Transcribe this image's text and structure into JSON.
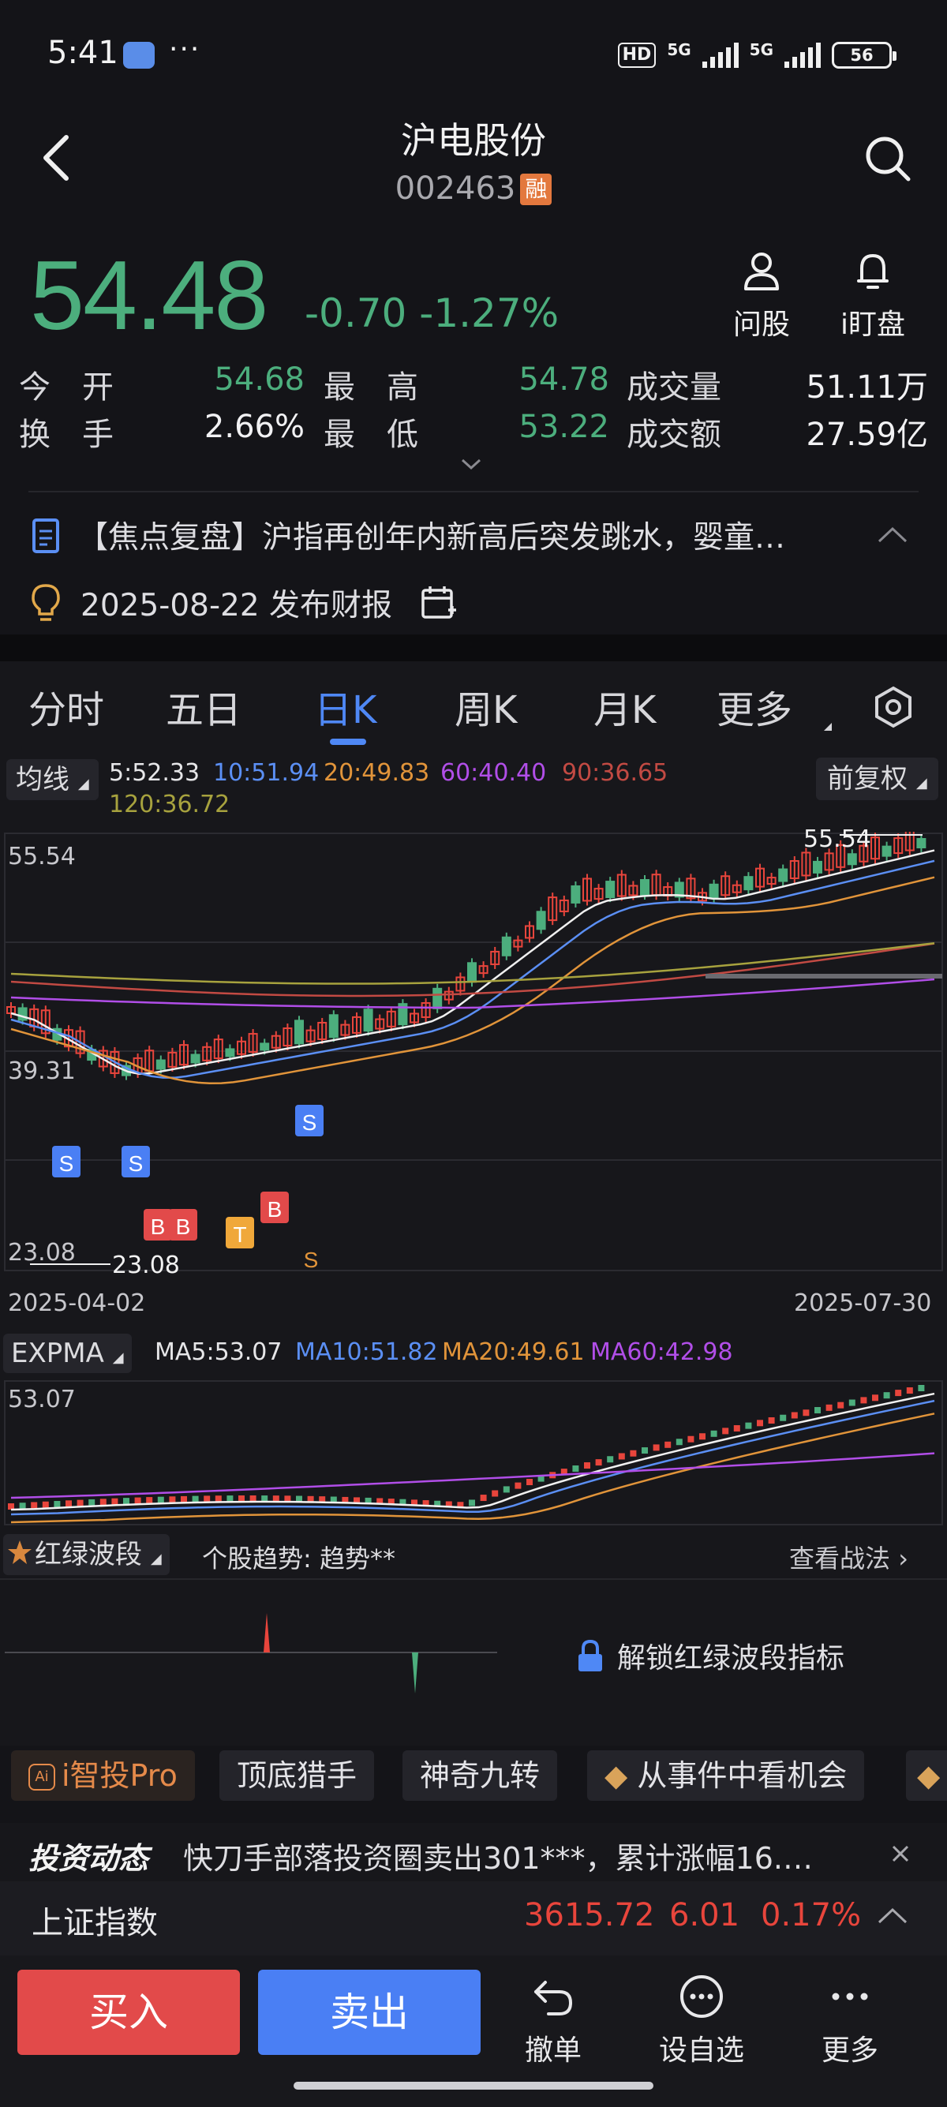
{
  "status_bar": {
    "time": "5:41",
    "more": "···",
    "network": "5G",
    "hd": "HD",
    "battery": "56"
  },
  "header": {
    "title": "沪电股份",
    "code": "002463",
    "margin_badge": "融"
  },
  "quote": {
    "price": "54.48",
    "change": "-0.70",
    "change_pct": "-1.27%",
    "open_label": "今　开",
    "open": "54.68",
    "high_label": "最　高",
    "high": "54.78",
    "volume_label": "成交量",
    "volume": "51.11万",
    "turnover_label": "换　手",
    "turnover": "2.66%",
    "low_label": "最　低",
    "low": "53.22",
    "amount_label": "成交额",
    "amount": "27.59亿"
  },
  "tools": {
    "ask": "问股",
    "watch": "i盯盘"
  },
  "news": {
    "headline": "【焦点复盘】沪指再创年内新高后突发跳水，婴童…"
  },
  "report": {
    "text": "2025-08-22 发布财报"
  },
  "period_tabs": [
    "分时",
    "五日",
    "日K",
    "周K",
    "月K",
    "更多"
  ],
  "active_tab": 2,
  "ma_controls": {
    "button": "均线",
    "adjust": "前复权"
  },
  "ma_legend": {
    "ma5": "5:52.33",
    "ma10": "10:51.94",
    "ma20": "20:49.83",
    "ma60": "60:40.40",
    "ma90": "90:36.65",
    "ma120": "120:36.72"
  },
  "kline": {
    "y_top": "55.54",
    "y_mid": "39.31",
    "y_bottom": "23.08",
    "high_marker": "55.54",
    "low_marker": "23.08",
    "date_start": "2025-04-02",
    "date_end": "2025-07-30",
    "signals": [
      "S",
      "S",
      "B",
      "B",
      "T",
      "B",
      "S",
      "S"
    ]
  },
  "expma": {
    "button": "EXPMA",
    "ma5": "MA5:53.07",
    "ma10": "MA10:51.82",
    "ma20": "MA20:49.61",
    "ma60": "MA60:42.98",
    "y_top": "53.07"
  },
  "wave": {
    "button": "红绿波段",
    "trend_label": "个股趋势:",
    "trend_value": "趋势**",
    "strategy_link": "查看战法",
    "unlock": "解锁红绿波段指标"
  },
  "strategies": [
    "i智投Pro",
    "顶底猎手",
    "神奇九转",
    "从事件中看机会"
  ],
  "dynamics": {
    "label": "投资动态",
    "text": "快刀手部落投资圈卖出301***，累计涨幅16.…"
  },
  "index_bar": {
    "name": "上证指数",
    "value": "3615.72",
    "change": "6.01",
    "pct": "0.17%"
  },
  "bottom": {
    "buy": "买入",
    "sell": "卖出",
    "cancel": "撤单",
    "favorite": "设自选",
    "more": "更多"
  },
  "colors": {
    "up": "#e8453c",
    "down": "#4cae7d",
    "accent": "#4f88f5",
    "buy": "#e24a4a",
    "sell": "#4a7ff4"
  }
}
